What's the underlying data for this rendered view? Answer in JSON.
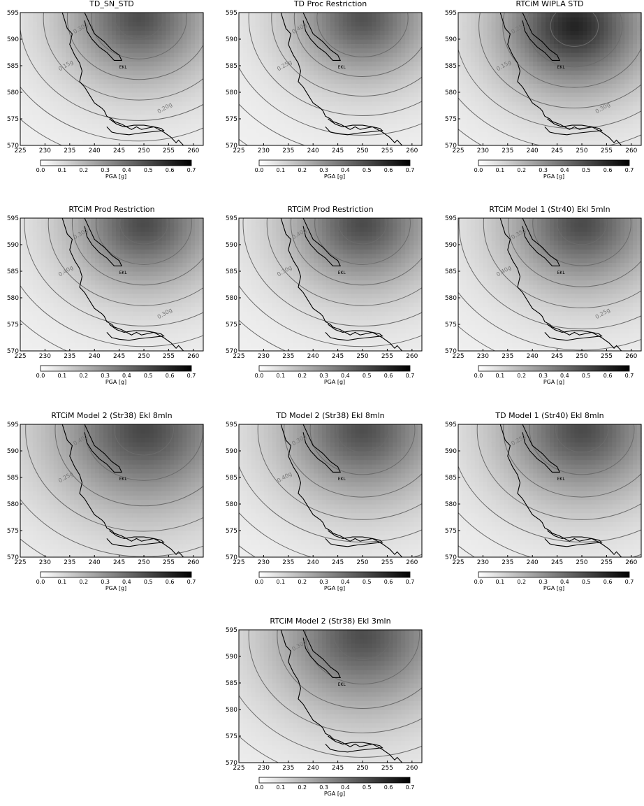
{
  "chart_data": [
    {
      "type": "heatmap",
      "title": "TD_SN_STD",
      "xlim": [
        225,
        262
      ],
      "ylim": [
        570,
        595
      ],
      "xticks": [
        225,
        230,
        235,
        240,
        245,
        250,
        255,
        260
      ],
      "yticks": [
        570,
        575,
        580,
        585,
        590,
        595
      ],
      "source": [
        249,
        594
      ],
      "intensity": 0.46,
      "spread": 1.05,
      "contour_labels": [
        "0.30g",
        "0.15g",
        "0.20g"
      ],
      "site_label": "EKL",
      "colorbar": {
        "ticks": [
          "0.0",
          "0.1",
          "0.2",
          "0.3",
          "0.4",
          "0.5",
          "0.6",
          "0.7"
        ],
        "label": "PGA   [g]",
        "range": [
          0,
          0.7
        ]
      }
    },
    {
      "type": "heatmap",
      "title": "TD Proc Restriction",
      "xlim": [
        225,
        262
      ],
      "ylim": [
        570,
        595
      ],
      "xticks": [
        225,
        230,
        235,
        240,
        245,
        250,
        255,
        260
      ],
      "yticks": [
        570,
        575,
        580,
        585,
        590,
        595
      ],
      "source": [
        250,
        594
      ],
      "intensity": 0.45,
      "spread": 1.0,
      "contour_labels": [
        "0.40g",
        "0.25g"
      ],
      "site_label": "EKL",
      "colorbar": {
        "ticks": [
          "0.0",
          "0.1",
          "0.2",
          "0.3",
          "0.4",
          "0.5",
          "0.6",
          "0.7"
        ],
        "label": "PGA   [g]",
        "range": [
          0,
          0.7
        ]
      }
    },
    {
      "type": "heatmap",
      "title": "RTCiM WIPLA STD",
      "xlim": [
        225,
        262
      ],
      "ylim": [
        570,
        595
      ],
      "xticks": [
        225,
        230,
        235,
        240,
        245,
        250,
        255,
        260
      ],
      "yticks": [
        570,
        575,
        580,
        585,
        590,
        595
      ],
      "source": [
        248.5,
        592.5
      ],
      "intensity": 0.58,
      "spread": 1.05,
      "contour_labels": [
        "0.25g",
        "0.15g",
        "0.30g"
      ],
      "site_label": "EKL",
      "colorbar": {
        "ticks": [
          "0.0",
          "0.1",
          "0.2",
          "0.3",
          "0.4",
          "0.5",
          "0.6",
          "0.7"
        ],
        "label": "PGA   [g]",
        "range": [
          0,
          0.7
        ]
      }
    },
    {
      "type": "heatmap",
      "title": "RTCiM Prod Restriction",
      "xlim": [
        225,
        262
      ],
      "ylim": [
        570,
        595
      ],
      "xticks": [
        225,
        230,
        235,
        240,
        245,
        250,
        255,
        260
      ],
      "yticks": [
        570,
        575,
        580,
        585,
        590,
        595
      ],
      "source": [
        250,
        594
      ],
      "intensity": 0.47,
      "spread": 1.05,
      "contour_labels": [
        "0.30g",
        "0.40g",
        "0.30g"
      ],
      "site_label": "EKL",
      "colorbar": {
        "ticks": [
          "0.0",
          "0.1",
          "0.2",
          "0.3",
          "0.4",
          "0.5",
          "0.6",
          "0.7"
        ],
        "label": "PGA   [g]",
        "range": [
          0,
          0.7
        ]
      }
    },
    {
      "type": "heatmap",
      "title": "RTCiM Prod Restriction",
      "xlim": [
        225,
        262
      ],
      "ylim": [
        570,
        595
      ],
      "xticks": [
        225,
        230,
        235,
        240,
        245,
        250,
        255,
        260
      ],
      "yticks": [
        570,
        575,
        580,
        585,
        590,
        595
      ],
      "source": [
        250,
        594
      ],
      "intensity": 0.47,
      "spread": 1.05,
      "contour_labels": [
        "0.40g",
        "0.30g"
      ],
      "site_label": "EKL",
      "colorbar": {
        "ticks": [
          "0.0",
          "0.1",
          "0.2",
          "0.3",
          "0.4",
          "0.5",
          "0.6",
          "0.7"
        ],
        "label": "PGA   [g]",
        "range": [
          0,
          0.7
        ]
      }
    },
    {
      "type": "heatmap",
      "title": "RTCiM Model 1 (Str40) Ekl 5mln",
      "xlim": [
        225,
        262
      ],
      "ylim": [
        570,
        595
      ],
      "xticks": [
        225,
        230,
        235,
        240,
        245,
        250,
        255,
        260
      ],
      "yticks": [
        570,
        575,
        580,
        585,
        590,
        595
      ],
      "source": [
        250,
        594
      ],
      "intensity": 0.47,
      "spread": 1.08,
      "contour_labels": [
        "0.35g",
        "0.40g",
        "0.25g"
      ],
      "site_label": "EKL",
      "colorbar": {
        "ticks": [
          "0.0",
          "0.1",
          "0.2",
          "0.3",
          "0.4",
          "0.5",
          "0.6",
          "0.7"
        ],
        "label": "PGA   [g]",
        "range": [
          0,
          0.7
        ]
      }
    },
    {
      "type": "heatmap",
      "title": "RTCiM Model 2 (Str38) Ekl 8mln",
      "xlim": [
        225,
        262
      ],
      "ylim": [
        570,
        595
      ],
      "xticks": [
        225,
        230,
        235,
        240,
        245,
        250,
        255,
        260
      ],
      "yticks": [
        570,
        575,
        580,
        585,
        590,
        595
      ],
      "source": [
        250,
        594
      ],
      "intensity": 0.48,
      "spread": 1.3,
      "contour_labels": [
        "0.40g",
        "0.25g"
      ],
      "site_label": "EKL",
      "colorbar": {
        "ticks": [
          "0.0",
          "0.1",
          "0.2",
          "0.3",
          "0.4",
          "0.5",
          "0.6",
          "0.7"
        ],
        "label": "PGA   [g]",
        "range": [
          0,
          0.7
        ]
      }
    },
    {
      "type": "heatmap",
      "title": "TD Model 2 (Str38) Ekl 8mln",
      "xlim": [
        225,
        262
      ],
      "ylim": [
        570,
        595
      ],
      "xticks": [
        225,
        230,
        235,
        240,
        245,
        250,
        255,
        260
      ],
      "yticks": [
        570,
        575,
        580,
        585,
        590,
        595
      ],
      "source": [
        250,
        594
      ],
      "intensity": 0.46,
      "spread": 1.15,
      "contour_labels": [
        "0.30g",
        "0.40g"
      ],
      "site_label": "EKL",
      "colorbar": {
        "ticks": [
          "0.0",
          "0.1",
          "0.2",
          "0.3",
          "0.4",
          "0.5",
          "0.6",
          "0.7"
        ],
        "label": "PGA   [g]",
        "range": [
          0,
          0.7
        ]
      }
    },
    {
      "type": "heatmap",
      "title": "TD Model 1 (Str40) Ekl 8mln",
      "xlim": [
        225,
        262
      ],
      "ylim": [
        570,
        595
      ],
      "xticks": [
        225,
        230,
        235,
        240,
        245,
        250,
        255,
        260
      ],
      "yticks": [
        570,
        575,
        580,
        585,
        590,
        595
      ],
      "source": [
        250,
        594
      ],
      "intensity": 0.47,
      "spread": 1.15,
      "contour_labels": [
        "0.25g"
      ],
      "site_label": "EKL",
      "colorbar": {
        "ticks": [
          "0.0",
          "0.1",
          "0.2",
          "0.3",
          "0.4",
          "0.5",
          "0.6",
          "0.7"
        ],
        "label": "PGA   [g]",
        "range": [
          0,
          0.7
        ]
      }
    },
    {
      "type": "heatmap",
      "title": "RTCiM Model 2 (Str38) Ekl 3mln",
      "xlim": [
        225,
        262
      ],
      "ylim": [
        570,
        595
      ],
      "xticks": [
        225,
        230,
        235,
        240,
        245,
        250,
        255,
        260
      ],
      "yticks": [
        570,
        575,
        580,
        585,
        590,
        595
      ],
      "source": [
        250,
        594
      ],
      "intensity": 0.46,
      "spread": 1.25,
      "contour_labels": [
        "0.30g"
      ],
      "site_label": "EKL",
      "colorbar": {
        "ticks": [
          "0.0",
          "0.1",
          "0.2",
          "0.3",
          "0.4",
          "0.5",
          "0.6",
          "0.7"
        ],
        "label": "PGA   [g]",
        "range": [
          0,
          0.7
        ]
      }
    }
  ]
}
